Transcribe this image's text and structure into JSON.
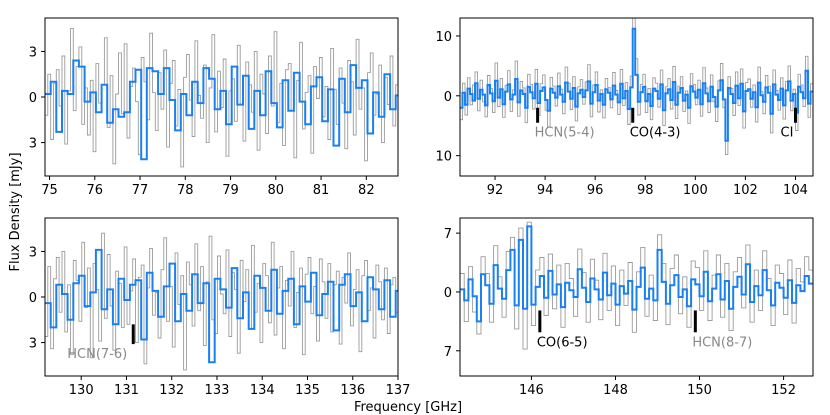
{
  "figure": {
    "xlabel": "Frequency [GHz]",
    "ylabel": "Flux Density [mJy]"
  },
  "colors": {
    "binned": "#1a80f0",
    "raw": "#8a8a8a",
    "line_marker": "#000000",
    "label_detected": "#000000",
    "label_undetected": "#888888"
  },
  "chart_data": [
    {
      "type": "line",
      "panel": "top-left",
      "xlim": [
        74.9,
        82.7
      ],
      "ylim": [
        -5.2,
        5.2
      ],
      "xticks": [
        75,
        76,
        77,
        78,
        79,
        80,
        81,
        82
      ],
      "yticks": [
        3,
        0,
        -3
      ],
      "ytick_labels": [
        "3",
        "0",
        "3"
      ],
      "binned_step_x": 0.125,
      "binned_y": [
        0.2,
        1.0,
        -2.3,
        0.4,
        0.2,
        2.4,
        2.0,
        -0.3,
        0.3,
        -1.0,
        0.8,
        -1.7,
        -0.8,
        -1.3,
        -1.0,
        1.0,
        1.8,
        -4.1,
        1.9,
        1.7,
        0.2,
        1.9,
        -0.2,
        -2.2,
        0.2,
        -1.2,
        1.0,
        -0.4,
        1.9,
        1.2,
        -0.8,
        0.4,
        -1.8,
        2.0,
        -0.5,
        1.4,
        -2.1,
        0.4,
        -1.2,
        1.7,
        -0.4,
        -2.0,
        1.1,
        -0.9,
        1.6,
        -0.3,
        -1.8,
        0.7,
        1.3,
        -1.6,
        0.5,
        -3.2,
        1.2,
        -1.0,
        2.1,
        0.6,
        1.1,
        -2.4,
        0.3,
        -1.3,
        1.5,
        -0.8,
        0.1,
        0.0
      ],
      "raw_step_x": 0.0625,
      "raw_y": [
        -1.2,
        1.5,
        -2.8,
        0.9,
        1.8,
        -0.6,
        2.7,
        -3.1,
        0.4,
        4.5,
        -0.9,
        2.0,
        3.3,
        -1.8,
        0.6,
        -2.5,
        1.1,
        -3.6,
        2.2,
        -0.4,
        0.8,
        3.9,
        -2.0,
        1.4,
        -4.4,
        0.2,
        2.9,
        -1.1,
        3.5,
        -2.7,
        0.7,
        1.9,
        -0.3,
        -3.8,
        2.6,
        1.0,
        -1.5,
        4.2,
        0.3,
        -2.2,
        1.6,
        -0.8,
        3.1,
        -3.3,
        0.9,
        2.4,
        -1.9,
        0.5,
        -4.6,
        1.3,
        2.8,
        -0.2,
        -2.6,
        3.7,
        0.1,
        -1.4,
        2.1,
        -3.0,
        0.6,
        4.1,
        -2.3,
        1.7,
        -0.7,
        2.5,
        -3.9,
        0.4,
        1.2,
        -1.6,
        3.4,
        -0.5,
        -2.9,
        2.3,
        0.8,
        -1.0,
        3.0,
        -3.5,
        1.5,
        0.2,
        -2.4,
        2.7,
        -0.6,
        4.3,
        -1.7,
        0.9,
        -3.2,
        1.8,
        2.2,
        -0.9,
        -4.0,
        1.1,
        3.6,
        -2.1,
        0.3,
        1.4,
        -3.7,
        2.0,
        -0.1,
        2.6,
        -1.3,
        0.7,
        -2.8,
        3.2,
        0.5,
        -1.8,
        1.9,
        -0.4,
        -3.4,
        2.4,
        1.0,
        -2.5,
        3.8,
        -0.8,
        0.6,
        -4.2,
        1.6,
        2.9,
        -1.2,
        0.2,
        2.1,
        -3.0,
        1.3,
        -0.5,
        2.7,
        -1.9,
        0.8,
        1.5,
        -2.6,
        0.4
      ]
    },
    {
      "type": "line",
      "panel": "top-right",
      "xlim": [
        90.6,
        104.7
      ],
      "ylim": [
        -13.4,
        13.0
      ],
      "xticks": [
        92,
        94,
        96,
        98,
        100,
        102,
        104
      ],
      "yticks": [
        10,
        0,
        -10
      ],
      "ytick_labels": [
        "10",
        "0",
        "10"
      ],
      "binned_step_x": 0.1,
      "binned_y": [
        -2.0,
        0.5,
        -1.5,
        1.2,
        0.3,
        -0.8,
        2.1,
        -0.5,
        1.0,
        0.2,
        -1.6,
        1.8,
        0.4,
        -0.9,
        2.5,
        -0.3,
        1.1,
        -1.4,
        0.7,
        1.9,
        -0.6,
        0.2,
        2.8,
        -1.1,
        0.9,
        0.3,
        -2.0,
        1.5,
        0.6,
        -0.4,
        2.0,
        -1.2,
        0.8,
        1.4,
        -0.7,
        -2.5,
        1.2,
        0.5,
        -0.3,
        1.6,
        0.2,
        -1.0,
        2.2,
        0.7,
        -0.5,
        1.3,
        -1.8,
        0.4,
        1.0,
        -0.2,
        0.9,
        2.4,
        -1.3,
        0.6,
        1.8,
        -0.8,
        0.3,
        -1.5,
        1.1,
        0.5,
        -0.6,
        1.7,
        0.2,
        -1.1,
        2.0,
        -0.4,
        0.8,
        -2.2,
        1.4,
        11.2,
        3.5,
        -1.0,
        0.6,
        1.5,
        -0.9,
        0.3,
        -1.7,
        1.2,
        0.8,
        -0.5,
        1.9,
        -2.4,
        0.4,
        1.1,
        -0.7,
        2.3,
        -1.5,
        0.5,
        1.3,
        -0.8,
        0.2,
        -2.0,
        1.6,
        0.7,
        -0.3,
        1.0,
        -1.4,
        2.1,
        0.4,
        -0.9,
        1.5,
        -0.2,
        -1.8,
        0.9,
        2.6,
        -0.6,
        -7.5,
        1.3,
        0.3,
        -1.2,
        1.7,
        -0.4,
        2.0,
        -2.6,
        0.8,
        1.1,
        -0.5,
        0.6,
        -1.9,
        2.2,
        0.1,
        -1.0,
        1.4,
        0.5,
        -3.0,
        1.9,
        0.2,
        -0.7,
        1.2,
        -1.6,
        0.9,
        2.4,
        -0.8,
        0.3,
        -2.8,
        1.5,
        0.6,
        -0.4,
        4.2,
        -1.3,
        0.7
      ],
      "raw_step_x": 0.1,
      "raw_y": [
        -4.0,
        2.1,
        -3.2,
        3.0,
        -1.5,
        1.8,
        4.0,
        -2.5,
        2.6,
        -1.0,
        -3.5,
        3.4,
        1.2,
        -2.8,
        5.5,
        -1.8,
        2.9,
        -3.6,
        1.7,
        4.2,
        -2.6,
        1.0,
        5.8,
        -3.4,
        2.4,
        1.3,
        -4.5,
        3.6,
        1.9,
        -2.2,
        4.4,
        -3.3,
        2.0,
        3.5,
        -2.4,
        -5.2,
        3.1,
        1.6,
        -1.7,
        3.8,
        1.1,
        -3.0,
        4.8,
        2.1,
        -2.3,
        3.2,
        -4.2,
        1.5,
        2.7,
        -1.4,
        2.3,
        5.2,
        -3.5,
        1.8,
        4.0,
        -2.7,
        1.0,
        -3.7,
        2.9,
        1.4,
        -2.0,
        3.9,
        0.9,
        -3.1,
        4.4,
        -1.6,
        2.2,
        -4.8,
        3.3,
        13.0,
        6.2,
        -3.2,
        1.9,
        3.6,
        -2.8,
        1.2,
        -4.0,
        3.0,
        2.1,
        -1.9,
        4.3,
        -5.0,
        1.5,
        2.9,
        -2.2,
        4.9,
        -3.8,
        1.6,
        3.2,
        -2.6,
        0.8,
        -4.6,
        3.7,
        1.9,
        -1.5,
        2.6,
        -3.4,
        4.7,
        1.3,
        -2.8,
        3.5,
        -1.0,
        -4.3,
        2.5,
        5.4,
        -2.0,
        -9.8,
        3.2,
        1.2,
        -3.3,
        4.0,
        -1.6,
        4.5,
        -5.4,
        2.2,
        2.8,
        -1.9,
        1.8,
        -4.4,
        4.8,
        0.7,
        -3.0,
        3.4,
        1.6,
        -6.2,
        4.3,
        0.9,
        -2.4,
        3.0,
        -3.9,
        2.4,
        5.0,
        -2.5,
        1.1,
        -5.8,
        3.6,
        1.8,
        -1.8,
        6.6,
        -3.6,
        2.0
      ],
      "line_markers": [
        {
          "label": "HCN(5-4)",
          "x": 93.7,
          "detected": false
        },
        {
          "label": "CO(4-3)",
          "x": 97.5,
          "detected": true
        },
        {
          "label": "CI",
          "x": 104.0,
          "detected": true
        }
      ]
    },
    {
      "type": "line",
      "panel": "bottom-left",
      "xlim": [
        129.2,
        137.0
      ],
      "ylim": [
        -5.2,
        5.2
      ],
      "xticks": [
        130,
        131,
        132,
        133,
        134,
        135,
        136,
        137
      ],
      "yticks": [
        3,
        0,
        -3
      ],
      "ytick_labels": [
        "3",
        "0",
        "3"
      ],
      "binned_step_x": 0.125,
      "binned_y": [
        -0.4,
        -2.0,
        0.8,
        0.2,
        -1.5,
        0.9,
        1.4,
        -0.6,
        0.3,
        3.1,
        -0.8,
        0.5,
        -1.8,
        1.2,
        -0.2,
        0.8,
        1.1,
        -2.8,
        1.6,
        0.4,
        -1.3,
        0.7,
        2.2,
        -1.6,
        0.2,
        -0.9,
        1.5,
        -0.4,
        0.9,
        -4.3,
        1.2,
        0.5,
        -0.7,
        1.9,
        -1.4,
        0.3,
        -2.1,
        1.4,
        0.6,
        -0.9,
        1.8,
        -1.1,
        0.4,
        1.2,
        -1.8,
        0.7,
        -0.3,
        1.6,
        -1.2,
        0.2,
        1.0,
        -2.2,
        0.8,
        1.5,
        -0.6,
        0.3,
        -1.6,
        1.3,
        0.5,
        -0.8,
        1.1,
        -1.3,
        0.4,
        0.3
      ],
      "raw_step_x": 0.0625,
      "raw_y": [
        -2.6,
        2.0,
        -3.4,
        1.2,
        2.6,
        -1.0,
        3.0,
        -2.3,
        0.8,
        -3.8,
        2.4,
        1.1,
        -1.6,
        3.6,
        -0.7,
        1.9,
        -4.0,
        2.2,
        0.5,
        -2.9,
        4.2,
        -1.4,
        2.8,
        -0.6,
        -3.5,
        1.7,
        0.9,
        -2.0,
        3.3,
        -1.8,
        0.4,
        2.5,
        -3.0,
        1.3,
        2.1,
        -4.4,
        0.6,
        3.2,
        -1.2,
        0.3,
        -2.7,
        1.8,
        3.9,
        -1.6,
        0.7,
        -3.3,
        2.9,
        -0.5,
        1.4,
        -4.8,
        2.3,
        0.8,
        -1.9,
        3.5,
        -0.9,
        2.0,
        -3.2,
        1.0,
        4.0,
        -1.5,
        -2.4,
        2.7,
        0.2,
        -1.1,
        3.1,
        -2.6,
        1.6,
        0.5,
        -3.7,
        2.4,
        -0.3,
        1.8,
        -2.1,
        3.4,
        -1.0,
        0.9,
        -3.0,
        2.2,
        1.4,
        -1.7,
        3.6,
        -2.5,
        0.6,
        2.0,
        -3.4,
        1.1,
        -0.6,
        3.0,
        -2.0,
        0.3,
        1.9,
        -3.8,
        1.5,
        2.6,
        -1.1,
        0.7,
        -2.9,
        2.5,
        1.0,
        -1.4,
        2.2,
        -2.3,
        0.8,
        1.7,
        -3.1,
        1.3,
        -0.4,
        2.9,
        -1.9,
        0.5,
        1.8,
        -3.6,
        1.4,
        2.4,
        -0.9,
        0.6,
        -2.7,
        2.1,
        1.0,
        -1.5,
        1.9,
        -2.4,
        0.8,
        1.3,
        -1.0,
        0.2,
        1.5,
        -0.6
      ]
    },
    {
      "type": "line",
      "panel": "bottom-right",
      "xlim": [
        144.3,
        152.7
      ],
      "ylim": [
        -10.0,
        8.8
      ],
      "xticks": [
        146,
        148,
        150,
        152
      ],
      "yticks": [
        7,
        0,
        -7
      ],
      "ytick_labels": [
        "7",
        "0",
        "7"
      ],
      "binned_step_x": 0.1,
      "binned_y": [
        0.3,
        -1.0,
        1.5,
        -0.5,
        -3.5,
        2.1,
        0.8,
        -1.4,
        3.2,
        0.4,
        -0.8,
        2.6,
        5.0,
        -1.6,
        6.2,
        -2.0,
        7.8,
        -1.5,
        0.6,
        1.9,
        -0.7,
        2.5,
        -0.3,
        0.9,
        -1.8,
        1.1,
        0.2,
        -0.6,
        2.7,
        0.5,
        -1.2,
        1.6,
        0.3,
        -0.9,
        2.3,
        -0.4,
        1.0,
        -1.5,
        0.7,
        -0.2,
        1.3,
        -2.1,
        0.6,
        2.9,
        -0.8,
        0.4,
        -1.0,
        5.0,
        1.2,
        -1.4,
        0.8,
        2.0,
        -0.6,
        0.3,
        -1.7,
        1.5,
        0.9,
        -0.5,
        2.4,
        -1.1,
        0.4,
        2.1,
        -0.9,
        1.3,
        -2.0,
        0.6,
        1.8,
        -0.3,
        3.3,
        -1.2,
        0.7,
        -0.4,
        2.6,
        0.2,
        -1.6,
        1.1,
        0.5,
        -0.7,
        1.4,
        -1.3,
        0.8,
        0.1,
        1.9,
        1.0
      ],
      "raw_step_x": 0.1,
      "raw_y": [
        2.2,
        -3.5,
        3.0,
        -2.4,
        -5.0,
        4.2,
        2.2,
        -3.6,
        5.5,
        1.8,
        -3.0,
        4.8,
        6.5,
        -4.4,
        7.6,
        -6.8,
        8.3,
        -4.0,
        2.6,
        4.1,
        -2.8,
        4.5,
        -2.0,
        3.2,
        -4.2,
        3.4,
        1.6,
        -2.9,
        5.1,
        2.3,
        -3.6,
        3.9,
        1.4,
        -3.3,
        4.6,
        -2.2,
        3.1,
        -4.0,
        2.6,
        -1.6,
        3.5,
        -4.8,
        2.4,
        5.3,
        -2.9,
        2.0,
        -3.4,
        6.8,
        3.4,
        -3.9,
        2.8,
        4.4,
        -2.6,
        1.8,
        -4.2,
        3.7,
        2.9,
        -2.2,
        4.9,
        -3.4,
        2.0,
        4.4,
        -3.0,
        3.4,
        -4.6,
        2.4,
        4.1,
        -1.9,
        5.6,
        -3.6,
        2.6,
        -2.2,
        4.9,
        1.6,
        -4.0,
        3.2,
        2.2,
        -2.7,
        3.8,
        -3.7,
        2.8,
        1.2,
        4.2,
        2.6
      ],
      "line_markers": [
        {
          "label": "CO(6-5)",
          "x": 146.2,
          "detected": true
        },
        {
          "label": "HCN(8-7)",
          "x": 149.9,
          "detected": false
        }
      ]
    }
  ],
  "bottom_left_annotation": {
    "label": "HCN(7-6)",
    "x": 131.15,
    "detected": false
  }
}
